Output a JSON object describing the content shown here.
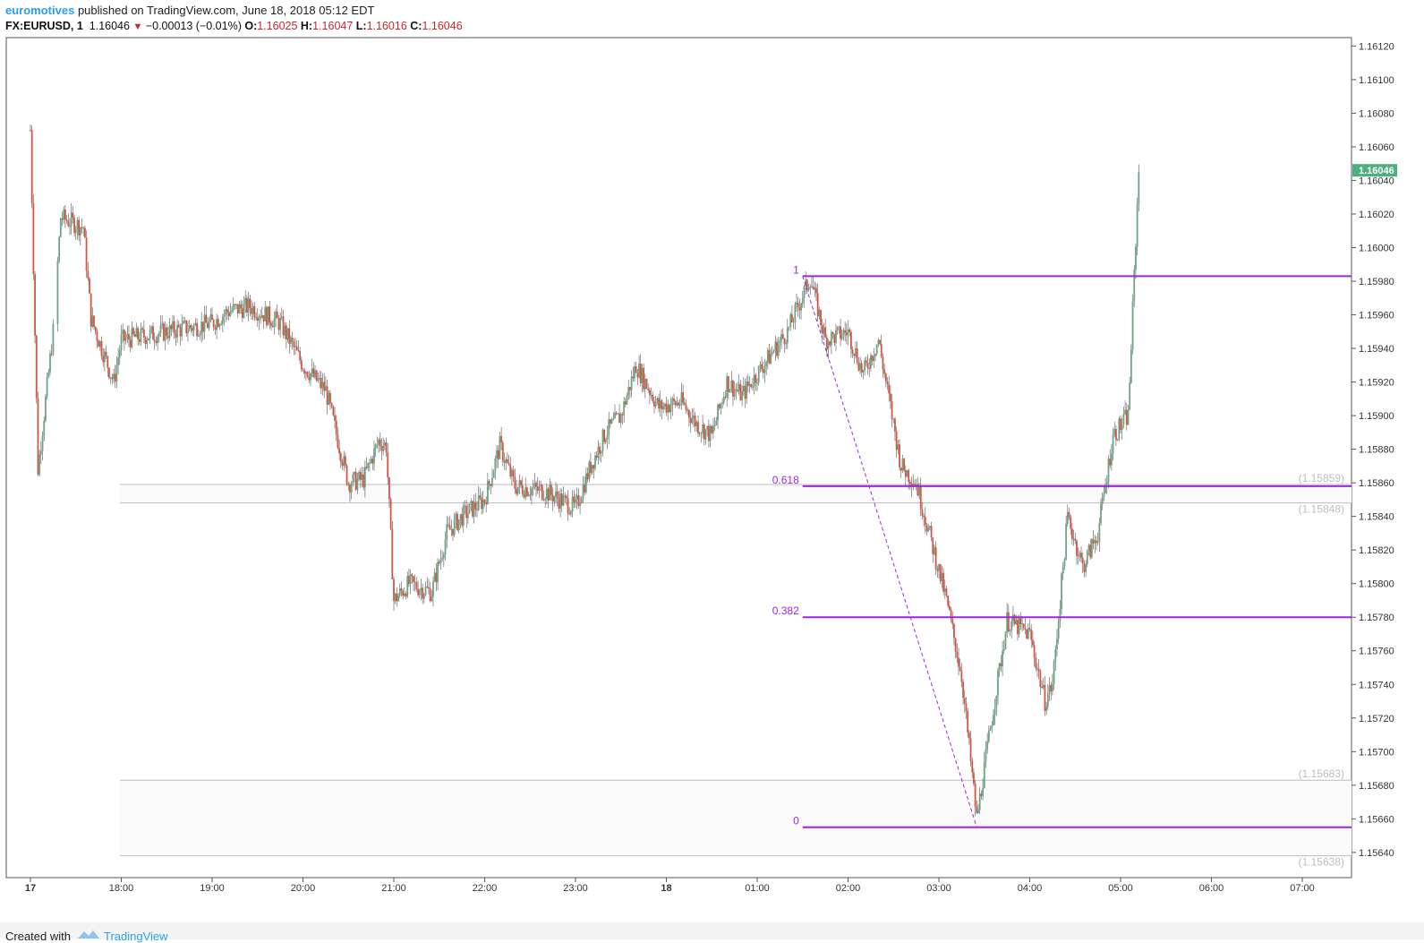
{
  "header": {
    "publisher": "euromotives",
    "published_text": "published on TradingView.com, June 18, 2018 05:12 EDT",
    "symbol": "FX:EURUSD, 1",
    "last": "1.16046",
    "change": "−0.00013 (−0.01%)",
    "o_label": "O:",
    "o_value": "1.16025",
    "h_label": "H:",
    "h_value": "1.16047",
    "l_label": "L:",
    "l_value": "1.16016",
    "c_label": "C:",
    "c_value": "1.16046"
  },
  "footer": {
    "created_with": "Created with",
    "brand": "TradingView"
  },
  "colors": {
    "up": "#6ba583",
    "down": "#d75442",
    "fib": "#9c27e0",
    "price_tag": "#4caf7d"
  },
  "chart_data": {
    "type": "candlestick",
    "symbol": "FX:EURUSD",
    "timeframe": "1",
    "y_range": [
      1.15625,
      1.16125
    ],
    "y_ticks": [
      "1.16120",
      "1.16100",
      "1.16080",
      "1.16060",
      "1.16040",
      "1.16020",
      "1.16000",
      "1.15980",
      "1.15960",
      "1.15940",
      "1.15920",
      "1.15900",
      "1.15880",
      "1.15860",
      "1.15840",
      "1.15820",
      "1.15800",
      "1.15780",
      "1.15760",
      "1.15740",
      "1.15720",
      "1.15700",
      "1.15680",
      "1.15660",
      "1.15640"
    ],
    "x_labels": [
      "17",
      "18:00",
      "19:00",
      "20:00",
      "21:00",
      "22:00",
      "23:00",
      "18",
      "01:00",
      "02:00",
      "03:00",
      "04:00",
      "05:00",
      "06:00",
      "07:00"
    ],
    "last_price_tag": "1.16046",
    "price_path": [
      [
        "17",
        1.1607
      ],
      [
        "17:05",
        1.15868
      ],
      [
        "17:15",
        1.1595
      ],
      [
        "17:20",
        1.16018
      ],
      [
        "17:35",
        1.16012
      ],
      [
        "17:40",
        1.15958
      ],
      [
        "17:55",
        1.1592
      ],
      [
        "18:00",
        1.15945
      ],
      [
        "18:30",
        1.1595
      ],
      [
        "19:00",
        1.15955
      ],
      [
        "19:10",
        1.15962
      ],
      [
        "19:25",
        1.15965
      ],
      [
        "19:45",
        1.15955
      ],
      [
        "20:00",
        1.1593
      ],
      [
        "20:15",
        1.15915
      ],
      [
        "20:30",
        1.1586
      ],
      [
        "20:40",
        1.15862
      ],
      [
        "20:50",
        1.15885
      ],
      [
        "20:55",
        1.15882
      ],
      [
        "21:00",
        1.1579
      ],
      [
        "21:10",
        1.158
      ],
      [
        "21:25",
        1.15795
      ],
      [
        "21:35",
        1.1583
      ],
      [
        "21:45",
        1.1584
      ],
      [
        "22:00",
        1.1585
      ],
      [
        "22:10",
        1.15882
      ],
      [
        "22:20",
        1.15858
      ],
      [
        "22:40",
        1.15855
      ],
      [
        "23:00",
        1.15845
      ],
      [
        "23:10",
        1.1587
      ],
      [
        "23:20",
        1.1589
      ],
      [
        "23:30",
        1.159
      ],
      [
        "23:40",
        1.1593
      ],
      [
        "23:55",
        1.15905
      ],
      [
        "00:10",
        1.15908
      ],
      [
        "00:20",
        1.15895
      ],
      [
        "00:30",
        1.15888
      ],
      [
        "00:40",
        1.1592
      ],
      [
        "00:50",
        1.15912
      ],
      [
        "01:00",
        1.15925
      ],
      [
        "01:20",
        1.1595
      ],
      [
        "01:35",
        1.15982
      ],
      [
        "01:45",
        1.15945
      ],
      [
        "02:00",
        1.1595
      ],
      [
        "02:10",
        1.15925
      ],
      [
        "02:20",
        1.15945
      ],
      [
        "02:35",
        1.1587
      ],
      [
        "02:45",
        1.1586
      ],
      [
        "02:55",
        1.15825
      ],
      [
        "03:05",
        1.1579
      ],
      [
        "03:15",
        1.15745
      ],
      [
        "03:25",
        1.1566
      ],
      [
        "03:35",
        1.1572
      ],
      [
        "03:45",
        1.15778
      ],
      [
        "04:00",
        1.1577
      ],
      [
        "04:10",
        1.1573
      ],
      [
        "04:15",
        1.1574
      ],
      [
        "04:25",
        1.1584
      ],
      [
        "04:35",
        1.1581
      ],
      [
        "04:45",
        1.1583
      ],
      [
        "04:55",
        1.15888
      ],
      [
        "05:05",
        1.159
      ],
      [
        "05:12",
        1.16046
      ]
    ],
    "fibonacci": {
      "levels": [
        {
          "label": "1",
          "value": 1.15983
        },
        {
          "label": "0.618",
          "value": 1.15858
        },
        {
          "label": "0.382",
          "value": 1.1578
        },
        {
          "label": "0",
          "value": 1.15655
        }
      ],
      "start_time": "01:30",
      "end_time": "03:25"
    },
    "zones": [
      {
        "top": 1.15859,
        "bottom": 1.15848,
        "top_label": "(1.15859)",
        "bottom_label": "(1.15848)"
      },
      {
        "top": 1.15683,
        "bottom": 1.15638,
        "top_label": "(1.15683)",
        "bottom_label": "(1.15638)"
      }
    ]
  }
}
